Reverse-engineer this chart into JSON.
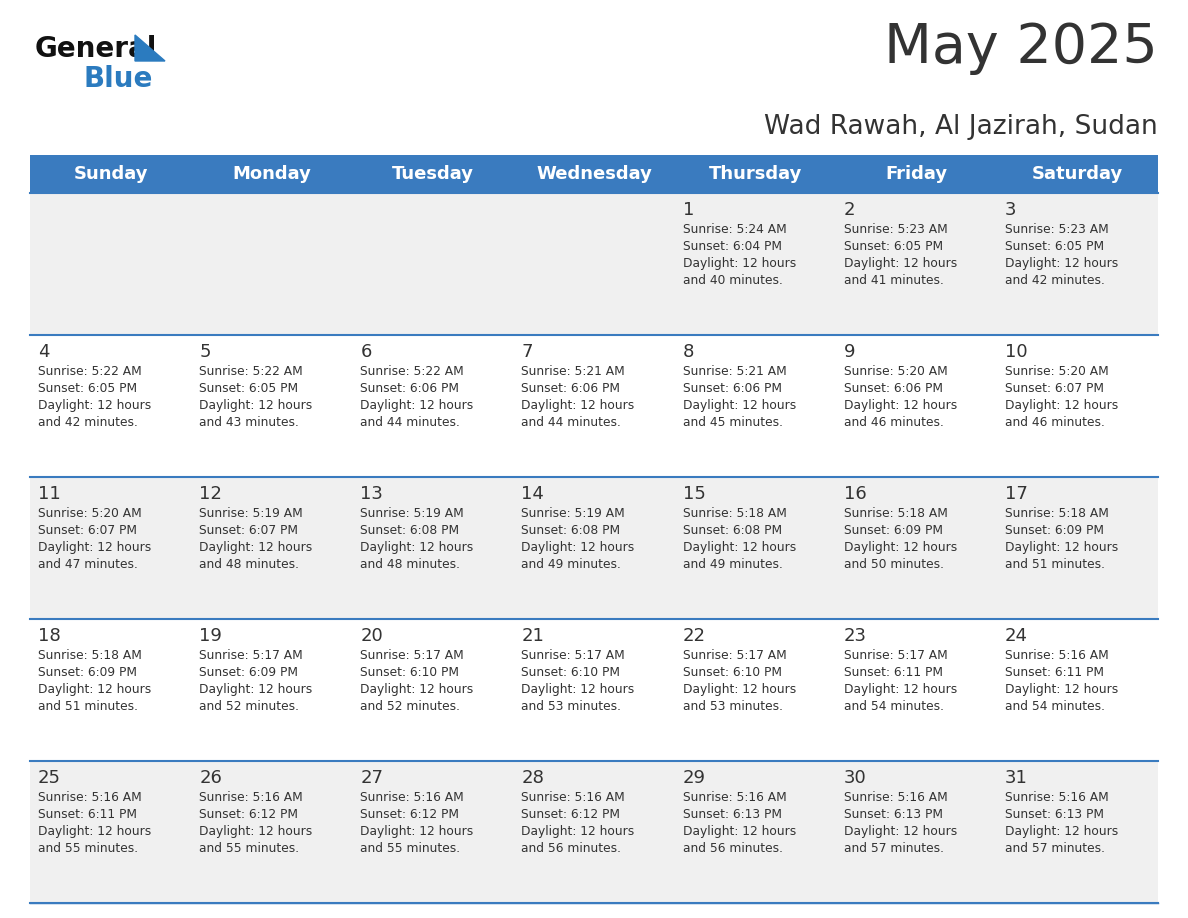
{
  "title": "May 2025",
  "subtitle": "Wad Rawah, Al Jazirah, Sudan",
  "header_bg": "#3a7bbf",
  "header_text": "#ffffff",
  "day_names": [
    "Sunday",
    "Monday",
    "Tuesday",
    "Wednesday",
    "Thursday",
    "Friday",
    "Saturday"
  ],
  "row_bg_odd": "#f0f0f0",
  "row_bg_even": "#ffffff",
  "divider_color": "#3a7bbf",
  "text_color": "#333333",
  "day_num_color": "#333333",
  "logo_general_color": "#111111",
  "logo_blue_color": "#2b7bbf",
  "calendar_data": [
    [
      null,
      null,
      null,
      null,
      {
        "day": 1,
        "sunrise": "5:24 AM",
        "sunset": "6:04 PM",
        "daylight_min": "40"
      },
      {
        "day": 2,
        "sunrise": "5:23 AM",
        "sunset": "6:05 PM",
        "daylight_min": "41"
      },
      {
        "day": 3,
        "sunrise": "5:23 AM",
        "sunset": "6:05 PM",
        "daylight_min": "42"
      }
    ],
    [
      {
        "day": 4,
        "sunrise": "5:22 AM",
        "sunset": "6:05 PM",
        "daylight_min": "42"
      },
      {
        "day": 5,
        "sunrise": "5:22 AM",
        "sunset": "6:05 PM",
        "daylight_min": "43"
      },
      {
        "day": 6,
        "sunrise": "5:22 AM",
        "sunset": "6:06 PM",
        "daylight_min": "44"
      },
      {
        "day": 7,
        "sunrise": "5:21 AM",
        "sunset": "6:06 PM",
        "daylight_min": "44"
      },
      {
        "day": 8,
        "sunrise": "5:21 AM",
        "sunset": "6:06 PM",
        "daylight_min": "45"
      },
      {
        "day": 9,
        "sunrise": "5:20 AM",
        "sunset": "6:06 PM",
        "daylight_min": "46"
      },
      {
        "day": 10,
        "sunrise": "5:20 AM",
        "sunset": "6:07 PM",
        "daylight_min": "46"
      }
    ],
    [
      {
        "day": 11,
        "sunrise": "5:20 AM",
        "sunset": "6:07 PM",
        "daylight_min": "47"
      },
      {
        "day": 12,
        "sunrise": "5:19 AM",
        "sunset": "6:07 PM",
        "daylight_min": "48"
      },
      {
        "day": 13,
        "sunrise": "5:19 AM",
        "sunset": "6:08 PM",
        "daylight_min": "48"
      },
      {
        "day": 14,
        "sunrise": "5:19 AM",
        "sunset": "6:08 PM",
        "daylight_min": "49"
      },
      {
        "day": 15,
        "sunrise": "5:18 AM",
        "sunset": "6:08 PM",
        "daylight_min": "49"
      },
      {
        "day": 16,
        "sunrise": "5:18 AM",
        "sunset": "6:09 PM",
        "daylight_min": "50"
      },
      {
        "day": 17,
        "sunrise": "5:18 AM",
        "sunset": "6:09 PM",
        "daylight_min": "51"
      }
    ],
    [
      {
        "day": 18,
        "sunrise": "5:18 AM",
        "sunset": "6:09 PM",
        "daylight_min": "51"
      },
      {
        "day": 19,
        "sunrise": "5:17 AM",
        "sunset": "6:09 PM",
        "daylight_min": "52"
      },
      {
        "day": 20,
        "sunrise": "5:17 AM",
        "sunset": "6:10 PM",
        "daylight_min": "52"
      },
      {
        "day": 21,
        "sunrise": "5:17 AM",
        "sunset": "6:10 PM",
        "daylight_min": "53"
      },
      {
        "day": 22,
        "sunrise": "5:17 AM",
        "sunset": "6:10 PM",
        "daylight_min": "53"
      },
      {
        "day": 23,
        "sunrise": "5:17 AM",
        "sunset": "6:11 PM",
        "daylight_min": "54"
      },
      {
        "day": 24,
        "sunrise": "5:16 AM",
        "sunset": "6:11 PM",
        "daylight_min": "54"
      }
    ],
    [
      {
        "day": 25,
        "sunrise": "5:16 AM",
        "sunset": "6:11 PM",
        "daylight_min": "55"
      },
      {
        "day": 26,
        "sunrise": "5:16 AM",
        "sunset": "6:12 PM",
        "daylight_min": "55"
      },
      {
        "day": 27,
        "sunrise": "5:16 AM",
        "sunset": "6:12 PM",
        "daylight_min": "55"
      },
      {
        "day": 28,
        "sunrise": "5:16 AM",
        "sunset": "6:12 PM",
        "daylight_min": "56"
      },
      {
        "day": 29,
        "sunrise": "5:16 AM",
        "sunset": "6:13 PM",
        "daylight_min": "56"
      },
      {
        "day": 30,
        "sunrise": "5:16 AM",
        "sunset": "6:13 PM",
        "daylight_min": "57"
      },
      {
        "day": 31,
        "sunrise": "5:16 AM",
        "sunset": "6:13 PM",
        "daylight_min": "57"
      }
    ]
  ]
}
